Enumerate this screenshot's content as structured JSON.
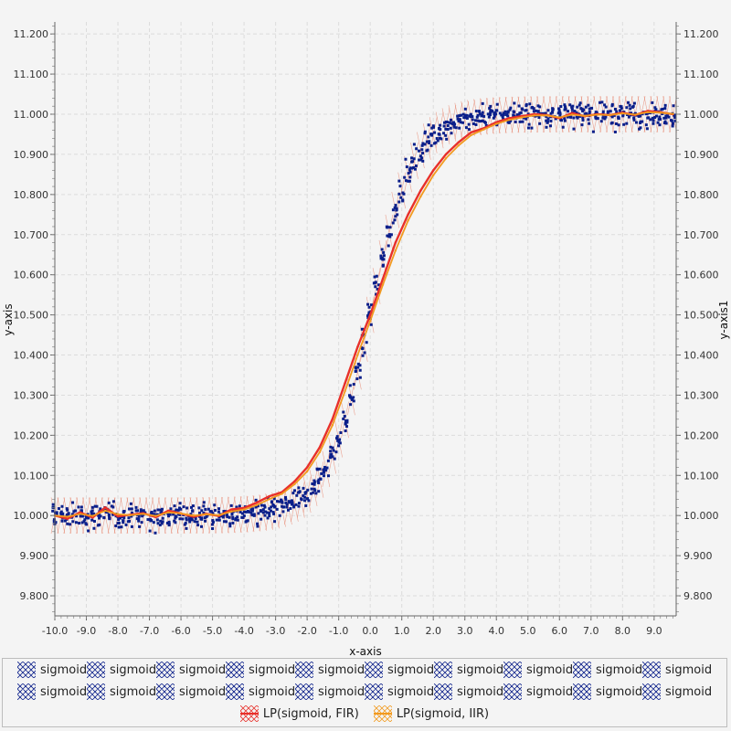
{
  "chart_data": {
    "type": "scatter",
    "title": "",
    "xlabel": "x-axis",
    "ylabel": "y-axis",
    "ylabel_right": "y-axis1",
    "xlim": [
      -10.0,
      9.7
    ],
    "ylim": [
      9.75,
      11.23
    ],
    "x_ticks": [
      "-10.0",
      "-9.0",
      "-8.0",
      "-7.0",
      "-6.0",
      "-5.0",
      "-4.0",
      "-3.0",
      "-2.0",
      "-1.0",
      "0.0",
      "1.0",
      "2.0",
      "3.0",
      "4.0",
      "5.0",
      "6.0",
      "7.0",
      "8.0",
      "9.0"
    ],
    "y_ticks": [
      "9.800",
      "9.900",
      "10.000",
      "10.100",
      "10.200",
      "10.300",
      "10.400",
      "10.500",
      "10.600",
      "10.700",
      "10.800",
      "10.900",
      "11.000",
      "11.100",
      "11.200"
    ],
    "grid": true,
    "scatter_model": {
      "function": "sigmoid",
      "baseline": 10.0,
      "amplitude": 1.0,
      "x_start": -10.0,
      "x_end": 9.7,
      "x_step": 0.2,
      "noise_sd": 0.03,
      "samples_per_x": 10,
      "color": "#0b1f8a"
    },
    "series": [
      {
        "name": "LP(sigmoid, FIR)",
        "color": "#e8302a",
        "x": [
          -10.0,
          -9.6,
          -9.2,
          -8.8,
          -8.4,
          -8.0,
          -7.6,
          -7.2,
          -6.8,
          -6.4,
          -6.0,
          -5.6,
          -5.2,
          -4.8,
          -4.4,
          -4.0,
          -3.6,
          -3.2,
          -2.8,
          -2.4,
          -2.0,
          -1.6,
          -1.2,
          -0.8,
          -0.4,
          0.0,
          0.4,
          0.8,
          1.2,
          1.6,
          2.0,
          2.4,
          2.8,
          3.2,
          3.6,
          4.0,
          4.4,
          4.8,
          5.2,
          5.6,
          6.0,
          6.4,
          6.8,
          7.2,
          7.6,
          8.0,
          8.4,
          8.8,
          9.2,
          9.6
        ],
        "y": [
          10.0,
          9.992,
          10.008,
          9.995,
          10.02,
          9.998,
          10.002,
          10.006,
          9.996,
          10.012,
          10.005,
          9.997,
          10.004,
          9.999,
          10.015,
          10.019,
          10.032,
          10.048,
          10.058,
          10.085,
          10.12,
          10.17,
          10.24,
          10.33,
          10.42,
          10.5,
          10.59,
          10.68,
          10.75,
          10.81,
          10.86,
          10.9,
          10.93,
          10.955,
          10.965,
          10.98,
          10.99,
          10.995,
          11.0,
          10.998,
          10.99,
          11.003,
          10.995,
          11.0,
          10.998,
          11.004,
          10.998,
          11.008,
          11.005,
          11.0
        ]
      },
      {
        "name": "LP(sigmoid, IIR)",
        "color": "#f29a1f",
        "x": [
          -10.0,
          -9.6,
          -9.2,
          -8.8,
          -8.4,
          -8.0,
          -7.6,
          -7.2,
          -6.8,
          -6.4,
          -6.0,
          -5.6,
          -5.2,
          -4.8,
          -4.4,
          -4.0,
          -3.6,
          -3.2,
          -2.8,
          -2.4,
          -2.0,
          -1.6,
          -1.2,
          -0.8,
          -0.4,
          0.0,
          0.4,
          0.8,
          1.2,
          1.6,
          2.0,
          2.4,
          2.8,
          3.2,
          3.6,
          4.0,
          4.4,
          4.8,
          5.2,
          5.6,
          6.0,
          6.4,
          6.8,
          7.2,
          7.6,
          8.0,
          8.4,
          8.8,
          9.2,
          9.6
        ],
        "y": [
          10.0,
          9.997,
          10.004,
          9.999,
          10.012,
          10.003,
          10.001,
          10.004,
          9.999,
          10.008,
          10.005,
          10.0,
          10.003,
          10.001,
          10.01,
          10.015,
          10.026,
          10.041,
          10.054,
          10.078,
          10.11,
          10.158,
          10.225,
          10.31,
          10.4,
          10.485,
          10.575,
          10.66,
          10.735,
          10.795,
          10.848,
          10.89,
          10.922,
          10.948,
          10.962,
          10.976,
          10.986,
          10.992,
          10.997,
          10.997,
          10.992,
          10.999,
          10.996,
          10.999,
          10.998,
          11.002,
          10.999,
          11.005,
          11.004,
          11.001
        ]
      }
    ],
    "legend_rows": [
      [
        "sigmoid",
        "sigmoid",
        "sigmoid",
        "sigmoid",
        "sigmoid",
        "sigmoid",
        "sigmoid",
        "sigmoid",
        "sigmoid",
        "sigmoid"
      ],
      [
        "sigmoid",
        "sigmoid",
        "sigmoid",
        "sigmoid",
        "sigmoid",
        "sigmoid",
        "sigmoid",
        "sigmoid",
        "sigmoid",
        "sigmoid"
      ],
      [
        "LP(sigmoid, FIR)",
        "LP(sigmoid, IIR)"
      ]
    ],
    "legend_placement": "bottom"
  }
}
